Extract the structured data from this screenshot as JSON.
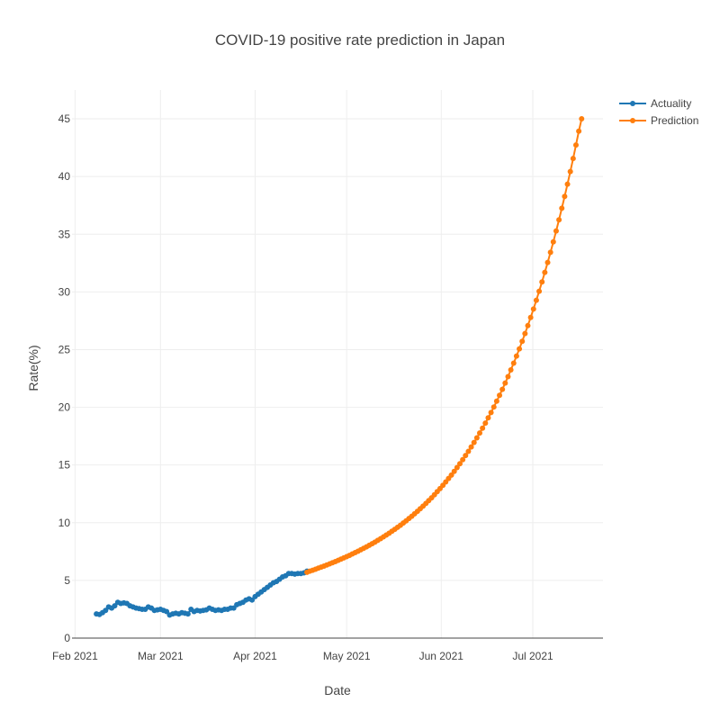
{
  "chart_data": {
    "type": "line",
    "title": "COVID-19 positive rate prediction in Japan",
    "xlabel": "Date",
    "ylabel": "Rate(%)",
    "xlim": [
      "2021-01-31",
      "2021-07-24"
    ],
    "ylim": [
      0,
      47.5
    ],
    "grid": true,
    "legend": "top-right",
    "x_ticks": [
      {
        "date": "2021-02-01",
        "label": "Feb 2021"
      },
      {
        "date": "2021-03-01",
        "label": "Mar 2021"
      },
      {
        "date": "2021-04-01",
        "label": "Apr 2021"
      },
      {
        "date": "2021-05-01",
        "label": "May 2021"
      },
      {
        "date": "2021-06-01",
        "label": "Jun 2021"
      },
      {
        "date": "2021-07-01",
        "label": "Jul 2021"
      }
    ],
    "y_ticks": [
      0,
      5,
      10,
      15,
      20,
      25,
      30,
      35,
      40,
      45
    ],
    "series": [
      {
        "name": "Actuality",
        "color": "#1f77b4",
        "points": [
          [
            "2021-02-08",
            2.1
          ],
          [
            "2021-02-09",
            2.05
          ],
          [
            "2021-02-10",
            2.2
          ],
          [
            "2021-02-11",
            2.4
          ],
          [
            "2021-02-12",
            2.7
          ],
          [
            "2021-02-13",
            2.6
          ],
          [
            "2021-02-14",
            2.8
          ],
          [
            "2021-02-15",
            3.1
          ],
          [
            "2021-02-16",
            3.0
          ],
          [
            "2021-02-17",
            3.05
          ],
          [
            "2021-02-18",
            3.0
          ],
          [
            "2021-02-19",
            2.8
          ],
          [
            "2021-02-20",
            2.7
          ],
          [
            "2021-02-21",
            2.6
          ],
          [
            "2021-02-22",
            2.55
          ],
          [
            "2021-02-23",
            2.5
          ],
          [
            "2021-02-24",
            2.5
          ],
          [
            "2021-02-25",
            2.7
          ],
          [
            "2021-02-26",
            2.6
          ],
          [
            "2021-02-27",
            2.4
          ],
          [
            "2021-02-28",
            2.45
          ],
          [
            "2021-03-01",
            2.5
          ],
          [
            "2021-03-02",
            2.4
          ],
          [
            "2021-03-03",
            2.3
          ],
          [
            "2021-03-04",
            2.0
          ],
          [
            "2021-03-05",
            2.1
          ],
          [
            "2021-03-06",
            2.15
          ],
          [
            "2021-03-07",
            2.1
          ],
          [
            "2021-03-08",
            2.2
          ],
          [
            "2021-03-09",
            2.15
          ],
          [
            "2021-03-10",
            2.1
          ],
          [
            "2021-03-11",
            2.5
          ],
          [
            "2021-03-12",
            2.3
          ],
          [
            "2021-03-13",
            2.4
          ],
          [
            "2021-03-14",
            2.35
          ],
          [
            "2021-03-15",
            2.4
          ],
          [
            "2021-03-16",
            2.45
          ],
          [
            "2021-03-17",
            2.6
          ],
          [
            "2021-03-18",
            2.5
          ],
          [
            "2021-03-19",
            2.4
          ],
          [
            "2021-03-20",
            2.45
          ],
          [
            "2021-03-21",
            2.4
          ],
          [
            "2021-03-22",
            2.5
          ],
          [
            "2021-03-23",
            2.5
          ],
          [
            "2021-03-24",
            2.6
          ],
          [
            "2021-03-25",
            2.6
          ],
          [
            "2021-03-26",
            2.9
          ],
          [
            "2021-03-27",
            3.0
          ],
          [
            "2021-03-28",
            3.1
          ],
          [
            "2021-03-29",
            3.3
          ],
          [
            "2021-03-30",
            3.4
          ],
          [
            "2021-03-31",
            3.3
          ],
          [
            "2021-04-01",
            3.6
          ],
          [
            "2021-04-02",
            3.8
          ],
          [
            "2021-04-03",
            4.0
          ],
          [
            "2021-04-04",
            4.2
          ],
          [
            "2021-04-05",
            4.4
          ],
          [
            "2021-04-06",
            4.6
          ],
          [
            "2021-04-07",
            4.8
          ],
          [
            "2021-04-08",
            4.9
          ],
          [
            "2021-04-09",
            5.1
          ],
          [
            "2021-04-10",
            5.3
          ],
          [
            "2021-04-11",
            5.4
          ],
          [
            "2021-04-12",
            5.6
          ],
          [
            "2021-04-13",
            5.6
          ],
          [
            "2021-04-14",
            5.55
          ],
          [
            "2021-04-15",
            5.6
          ],
          [
            "2021-04-16",
            5.6
          ],
          [
            "2021-04-17",
            5.65
          ],
          [
            "2021-04-18",
            5.8
          ]
        ]
      },
      {
        "name": "Prediction",
        "color": "#ff7f0e",
        "start": "2021-04-18",
        "end": "2021-07-17",
        "values": [
          5.7,
          5.8,
          5.88,
          5.97,
          6.06,
          6.15,
          6.24,
          6.34,
          6.43,
          6.53,
          6.63,
          6.74,
          6.84,
          6.95,
          7.06,
          7.17,
          7.29,
          7.41,
          7.53,
          7.65,
          7.78,
          7.91,
          8.04,
          8.18,
          8.32,
          8.47,
          8.62,
          8.77,
          8.93,
          9.09,
          9.26,
          9.43,
          9.6,
          9.78,
          9.97,
          10.16,
          10.36,
          10.56,
          10.77,
          10.99,
          11.21,
          11.44,
          11.67,
          11.91,
          12.16,
          12.42,
          12.69,
          12.96,
          13.24,
          13.53,
          13.83,
          14.13,
          14.45,
          14.78,
          15.11,
          15.46,
          15.82,
          16.18,
          16.56,
          16.95,
          17.35,
          17.77,
          18.19,
          18.63,
          19.09,
          19.55,
          20.03,
          20.53,
          21.04,
          21.56,
          22.1,
          22.66,
          23.24,
          23.83,
          24.44,
          25.07,
          25.72,
          26.39,
          27.08,
          27.79,
          28.52,
          29.28,
          30.06,
          30.87,
          31.7,
          32.55,
          33.43,
          34.34,
          35.28,
          36.25,
          37.25,
          38.28,
          39.34,
          40.43,
          41.56,
          42.73,
          43.93,
          45.0
        ]
      }
    ]
  }
}
